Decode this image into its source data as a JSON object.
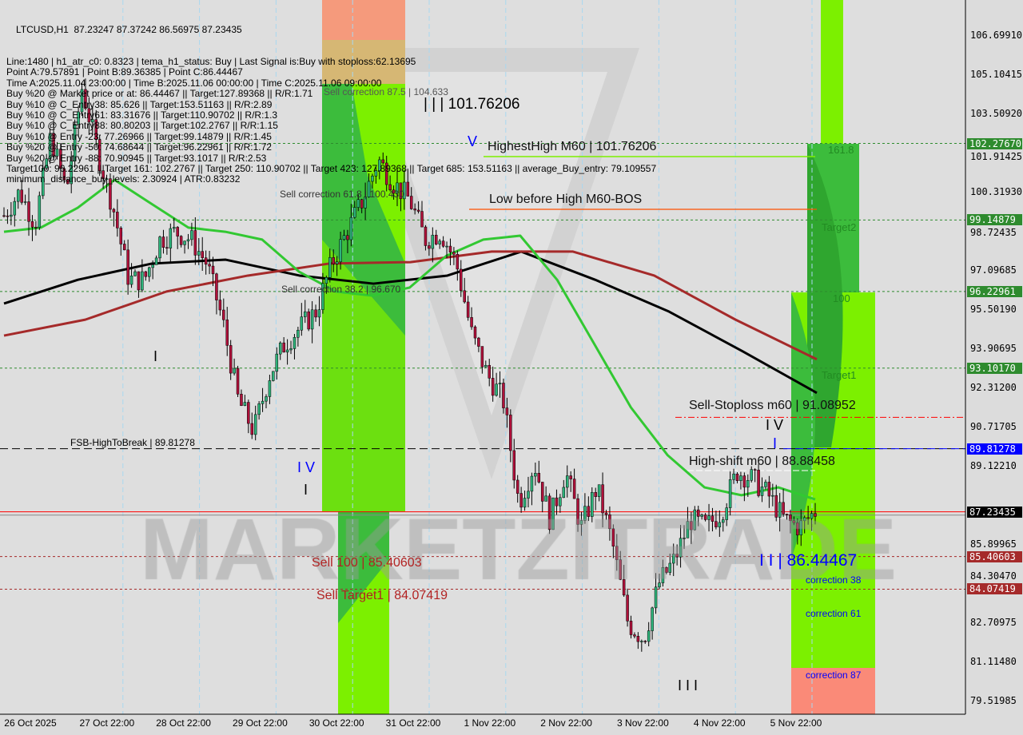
{
  "header": {
    "symbol_line": "LTCUSD,H1  87.23247 87.37242 86.56975 87.23435",
    "info_lines": [
      "Line:1480 | h1_atr_c0: 0.8323 | tema_h1_status: Buy | Last Signal is:Buy with stoploss:62.13695",
      "Point A:79.57891 | Point B:89.36385 | Point C:86.44467",
      "Time A:2025.11.04 23:00:00 | Time B:2025.11.06 00:00:00 | Time C:2025.11.06 09:00:00",
      "Buy %20 @ Market price or at: 86.44467 || Target:127.89368 || R/R:1.71",
      "Buy %10 @ C_Entry38: 85.626 || Target:153.51163 || R/R:2.89",
      "Buy %10 @ C_Entry61: 83.31676 || Target:110.90702 || R/R:1.3",
      "Buy %10 @ C_Entry88: 80.80203 || Target:102.2767 || R/R:1.15",
      "Buy %10 @ Entry -23: 77.26966 || Target:99.14879 || R/R:1.45",
      "Buy %20 @ Entry -50: 74.68644 || Target:96.22961 || R/R:1.72",
      "Buy %20 @ Entry -88: 70.90945 || Target:93.1017 || R/R:2.53",
      "Target100: 96.22961 || Target 161: 102.2767 || Target 250: 110.90702 || Target 423: 127.89368 || Target 685: 153.51163 || average_Buy_entry: 79.109557",
      "minimum_distance_buy_levels: 2.30924 | ATR:0.83232"
    ]
  },
  "annotations": {
    "sell_corr_875": "Sell correction 87.5 | 104.633",
    "sell_corr_618": "Sell correction 61.8 | 100.430",
    "sell_corr_382": "Sell correction 38.2 | 96.670",
    "wave_iii_high": "| | | 101.76206",
    "wave_v": "V",
    "highest_high": "HighestHigh   M60 | 101.76206",
    "low_before_high": "Low before High   M60-BOS",
    "fsb": "FSB-HighToBreak | 89.81278",
    "wave_iv_left": "I V",
    "wave_i_left": "I",
    "wave_i_left2": "I",
    "sell_stoploss": "Sell-Stoploss m60 | 91.08952",
    "wave_iv_right": "I V",
    "wave_i_right": "I",
    "high_shift": "High-shift m60 | 88.88458",
    "sell_100": "Sell 100 | 85.40603",
    "sell_target1": "Sell Target1 | 84.07419",
    "wave_ii_point": "I I | 86.44467",
    "wave_iii_low": "I I I",
    "lvl_1618": "161.8",
    "lvl_target2": "Target2",
    "lvl_100": "100",
    "lvl_target1": "Target1",
    "corr_38": "correction 38",
    "corr_61": "correction 61",
    "corr_87": "correction 87",
    "watermark": "MARKETZITRADE"
  },
  "price_axis": [
    "106.69910",
    "105.10415",
    "103.50920",
    "101.91425",
    "100.31930",
    "98.72435",
    "97.09685",
    "95.50190",
    "93.90695",
    "92.31200",
    "90.71705",
    "89.12210",
    "85.89965",
    "84.30470",
    "82.70975",
    "81.11480",
    "79.51985"
  ],
  "price_tags": [
    {
      "value": "102.27670",
      "color": "#2e8b2e"
    },
    {
      "value": "99.14879",
      "color": "#2e8b2e"
    },
    {
      "value": "96.22961",
      "color": "#2e8b2e"
    },
    {
      "value": "93.10170",
      "color": "#2e8b2e"
    },
    {
      "value": "89.81278",
      "color": "#0000ff"
    },
    {
      "value": "87.23435",
      "color": "#000000"
    },
    {
      "value": "85.40603",
      "color": "#a52a2a"
    },
    {
      "value": "84.07419",
      "color": "#a52a2a"
    }
  ],
  "time_axis": [
    "26 Oct 2025",
    "27 Oct 22:00",
    "28 Oct 22:00",
    "29 Oct 22:00",
    "30 Oct 22:00",
    "31 Oct 22:00",
    "1 Nov 22:00",
    "2 Nov 22:00",
    "3 Nov 22:00",
    "4 Nov 22:00",
    "5 Nov 22:00"
  ],
  "chart_data": {
    "type": "candlestick",
    "symbol": "LTCUSD",
    "timeframe": "H1",
    "ylim": [
      79.0,
      108.1
    ],
    "last_price": 87.23435,
    "close_path": [
      99.33,
      100.31,
      99.0,
      102.59,
      100.31,
      104.55,
      101.94,
      99.65,
      96.71,
      96.71,
      98.35,
      98.67,
      98.35,
      97.37,
      95.08,
      91.82,
      90.52,
      92.8,
      94.11,
      94.76,
      95.42,
      97.37,
      98.67,
      99.98,
      101.61,
      100.63,
      99.98,
      98.35,
      98.67,
      97.37,
      94.43,
      92.8,
      91.82,
      87.58,
      89.21,
      86.92,
      88.88,
      86.6,
      88.23,
      85.95,
      82.69,
      82.03,
      84.32,
      85.3,
      86.92,
      86.6,
      87.25,
      88.88,
      88.56,
      87.91,
      86.92,
      86.6,
      87.25
    ],
    "moving_averages": [
      {
        "color": "#000000",
        "values": [
          95.74,
          96.71,
          97.37,
          97.53,
          96.88,
          96.55,
          96.88,
          97.86,
          96.71,
          95.41,
          93.78,
          92.09
        ]
      },
      {
        "color": "#a52a2a",
        "values": [
          94.43,
          95.08,
          96.23,
          96.88,
          97.37,
          97.43,
          97.86,
          97.86,
          96.88,
          95.08,
          93.46
        ]
      },
      {
        "color": "#32c832",
        "values": [
          98.67,
          98.84,
          99.65,
          100.79,
          99.81,
          98.84,
          98.67,
          98.35,
          97.04,
          96.23,
          96.06,
          96.39,
          97.69,
          98.35,
          98.51,
          96.71,
          94.11,
          91.5,
          89.54,
          88.23,
          87.91,
          88.23,
          87.74
        ]
      }
    ],
    "levels": [
      {
        "value": 102.2767,
        "style": "dotted",
        "color": "#2e8b2e"
      },
      {
        "value": 99.14879,
        "style": "dotted",
        "color": "#2e8b2e"
      },
      {
        "value": 96.22961,
        "style": "dotted",
        "color": "#2e8b2e"
      },
      {
        "value": 93.1017,
        "style": "dotted",
        "color": "#2e8b2e"
      },
      {
        "value": 91.08952,
        "style": "dashdot",
        "color": "#ff0000"
      },
      {
        "value": 89.81278,
        "style": "dashed",
        "color": "#000000"
      },
      {
        "value": 87.23435,
        "style": "solid",
        "color": "#ff0000"
      },
      {
        "value": 85.40603,
        "style": "dotted",
        "color": "#a52a2a"
      },
      {
        "value": 84.07419,
        "style": "dotted",
        "color": "#a52a2a"
      }
    ]
  }
}
